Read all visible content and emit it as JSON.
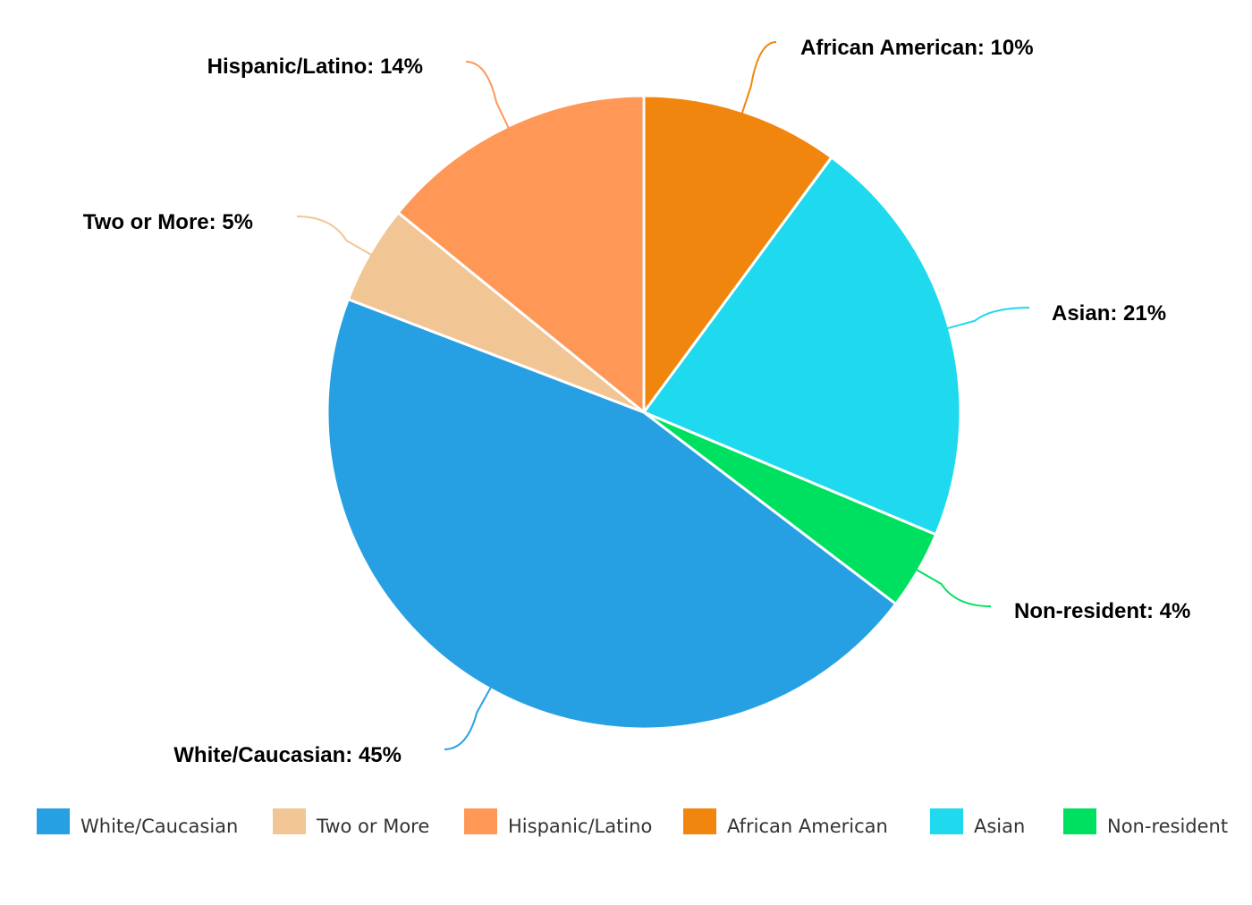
{
  "chart_data": {
    "type": "pie",
    "start": "12 o'clock",
    "direction": "clockwise",
    "categories": [
      "African American",
      "Asian",
      "Non-resident",
      "White/Caucasian",
      "Two or More",
      "Hispanic/Latino"
    ],
    "values": [
      10,
      21,
      4,
      45,
      5,
      14
    ],
    "colors": [
      "#f0860e",
      "#1fd9ee",
      "#00e060",
      "#27a0e3",
      "#f2c595",
      "#ff9757"
    ],
    "data_labels": [
      "African American: 10%",
      "Asian: 21%",
      "Non-resident: 4%",
      "White/Caucasian: 45%",
      "Two or More: 5%",
      "Hispanic/Latino: 14%"
    ],
    "legend": {
      "position": "bottom",
      "order": [
        "White/Caucasian",
        "Two or More",
        "Hispanic/Latino",
        "African American",
        "Asian",
        "Non-resident"
      ]
    }
  }
}
